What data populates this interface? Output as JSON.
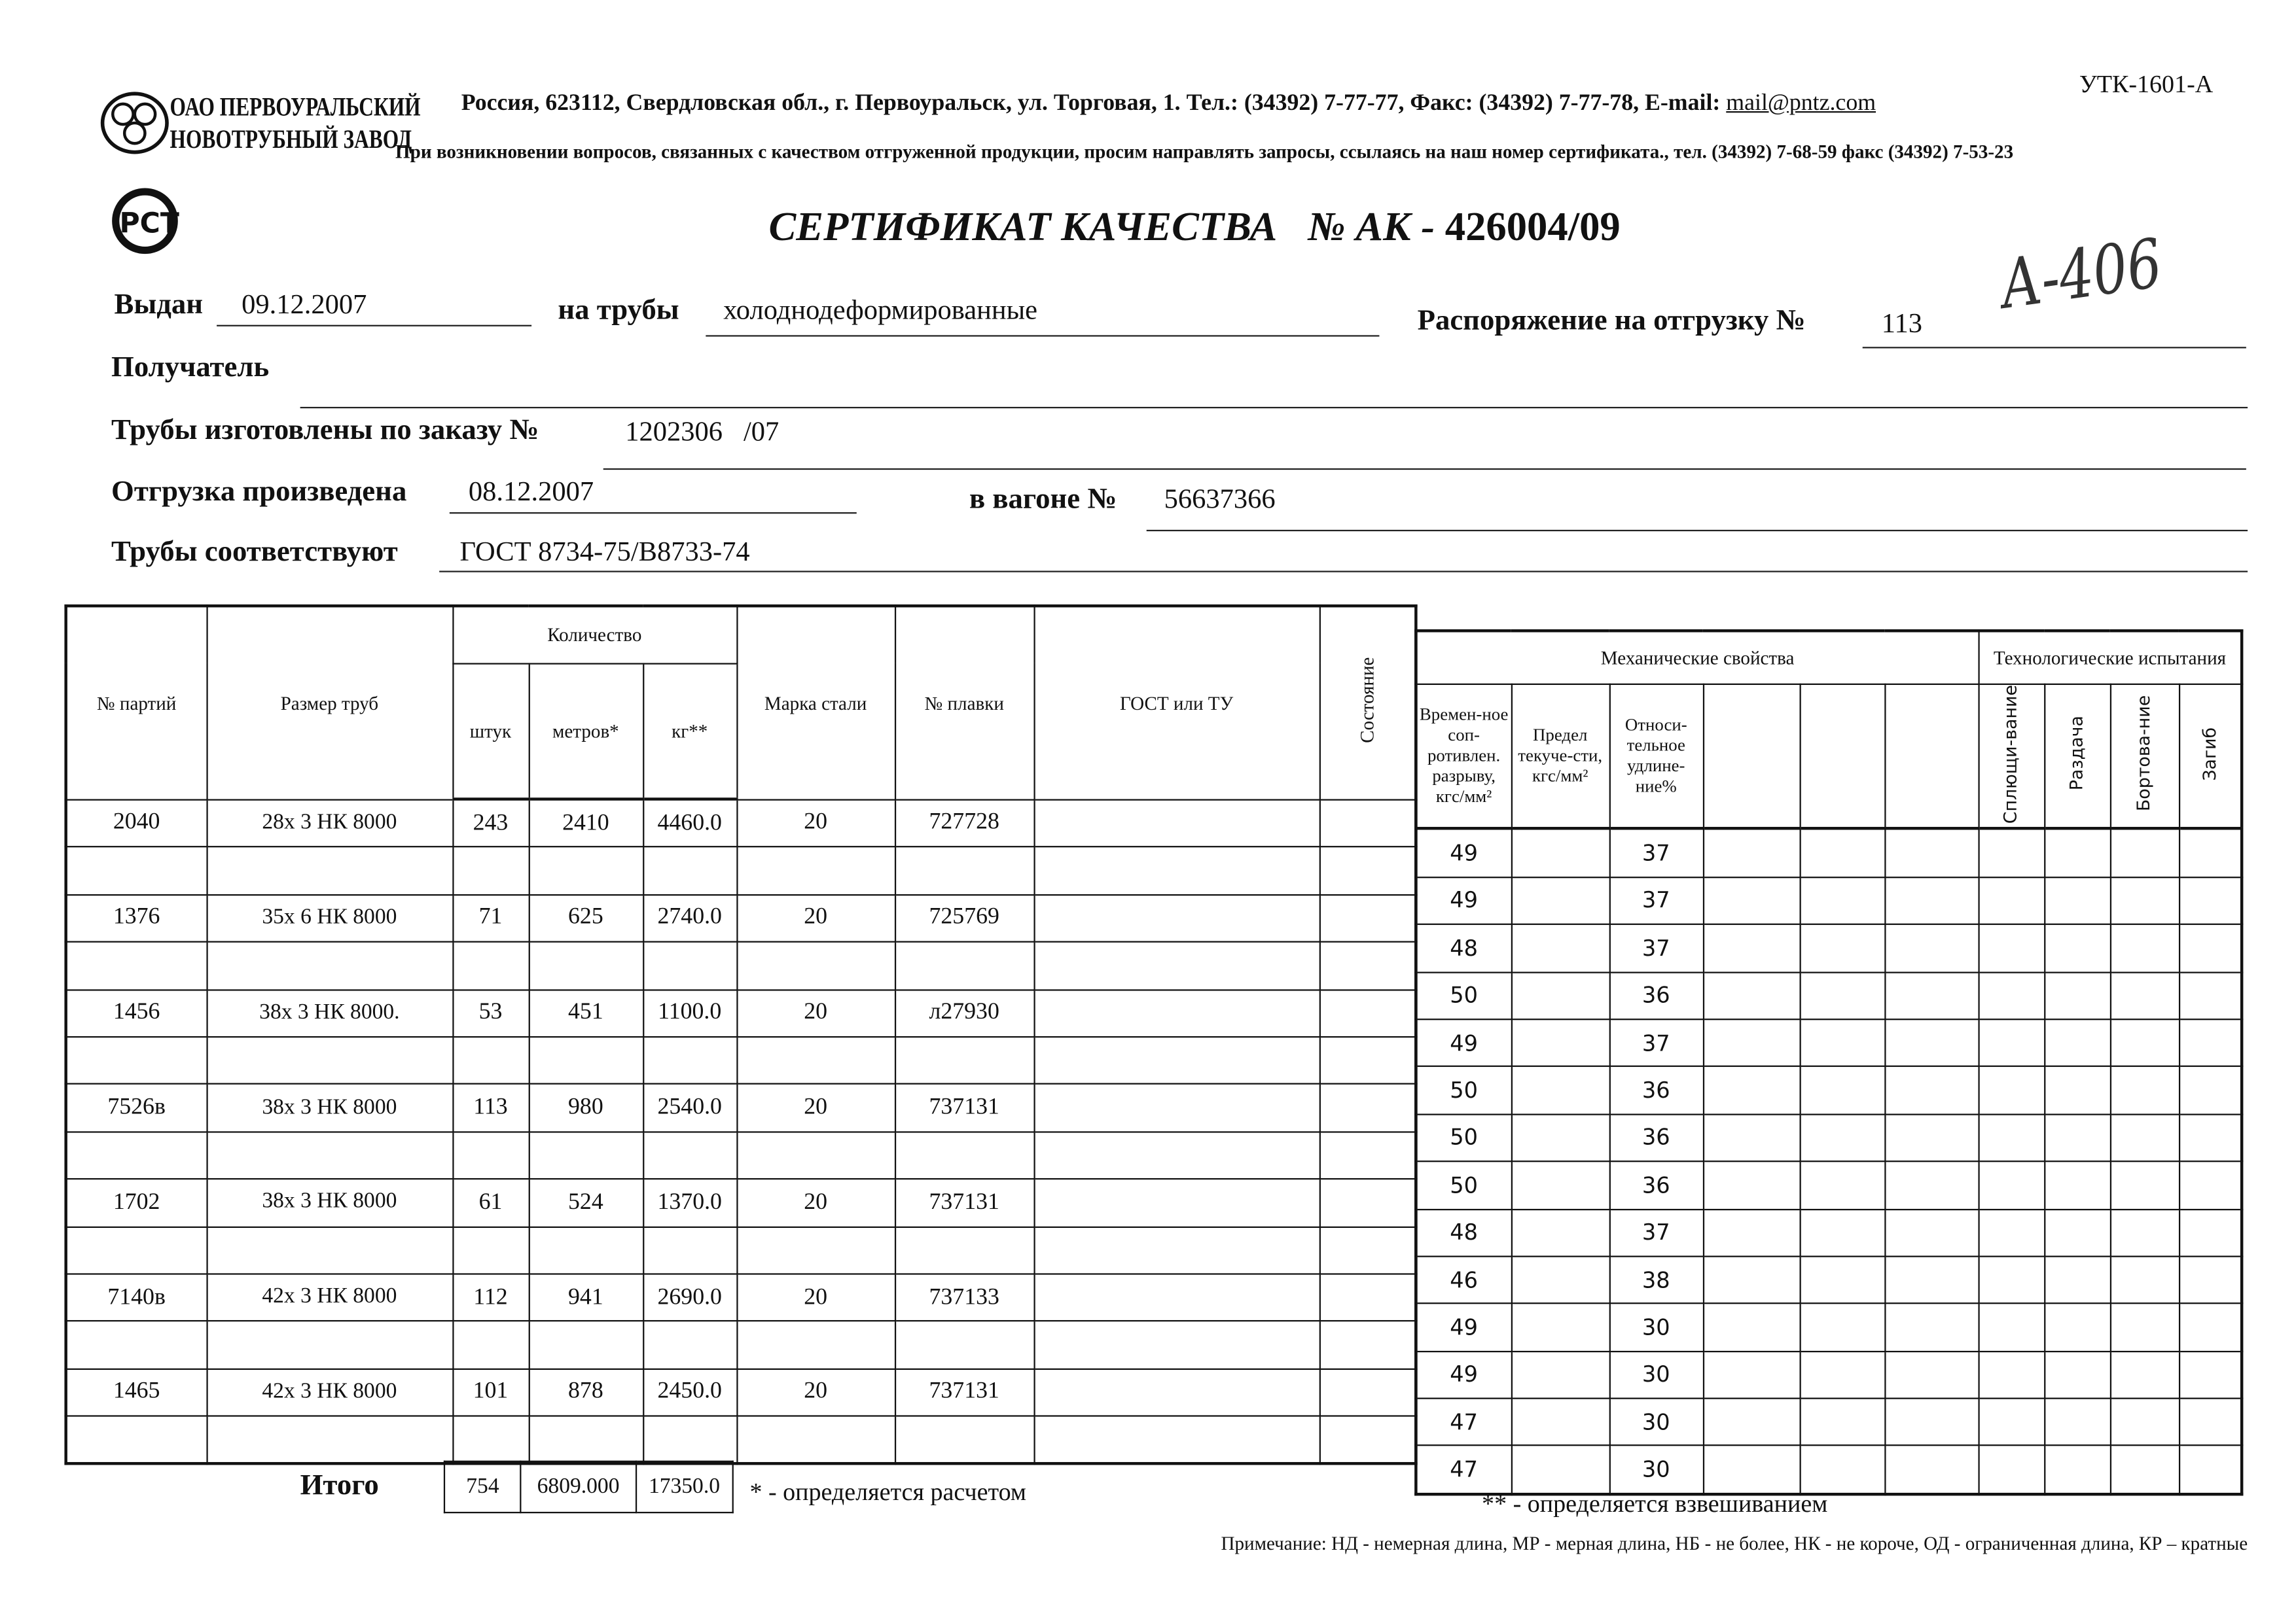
{
  "form_code": "УТК-1601-А",
  "company": {
    "line1": "ОАО ПЕРВОУРАЛЬСКИЙ",
    "line2": "НОВОТРУБНЫЙ ЗАВОД"
  },
  "address": "Россия, 623112, Свердловская обл., г. Первоуральск, ул. Торговая, 1. Тел.: (34392) 7-77-77, Факс: (34392) 7-77-78,  E-mail: ",
  "email": "mail@pntz.com",
  "contact_note": "При возникновении вопросов, связанных с качеством отгруженной продукции, просим направлять запросы, ссылаясь на наш номер сертификата., тел. (34392) 7-68-59 факс (34392) 7-53-23",
  "cert_mark": "РСТ",
  "title": "СЕРТИФИКАТ КАЧЕСТВА",
  "number_label": "№  АК -",
  "number": "426004/09",
  "handwritten": "А-406",
  "fields": {
    "issued_label": "Выдан",
    "issued": "09.12.2007",
    "pipes_label": "на трубы",
    "pipes": "холоднодеформированные",
    "order_label": "Распоряжение на отгрузку №",
    "order": "113",
    "recipient_label": "Получатель",
    "recipient": "",
    "made_label": "Трубы изготовлены по заказу №",
    "made": "1202306   /07",
    "shipped_label": "Отгрузка произведена",
    "shipped": "08.12.2007",
    "wagon_label": "в вагоне №",
    "wagon": "56637366",
    "conform_label": "Трубы соответствуют",
    "conform": "ГОСТ 8734-75/В8733-74"
  },
  "table": {
    "headers": {
      "party": "№ партий",
      "size": "Размер труб",
      "quantity": "Количество",
      "pcs": "штук",
      "meters": "метров*",
      "kg": "кг**",
      "steel": "Марка стали",
      "heat": "№ плавки",
      "gost": "ГОСТ или ТУ",
      "state": "Состояние",
      "mech": "Механические свойства",
      "tensile": "Времен-ное соп-ротивлен. разрыву, кгс/мм²",
      "yield": "Предел текуче-сти, кгс/мм²",
      "elong": "Относи-тельное удлине-ние%",
      "tech": "Технологические испытания",
      "flatten": "Сплющи-вание",
      "expand": "Раздача",
      "flange": "Бортова-ние",
      "bend": "Загиб"
    },
    "rows": [
      {
        "party": "2040",
        "size": "28х 3 НК 8000",
        "pcs": "243",
        "meters": "2410",
        "kg": "4460.0",
        "steel": "20",
        "heat": "727728"
      },
      {
        "party": "1376",
        "size": "35х 6 НК 8000",
        "pcs": "71",
        "meters": "625",
        "kg": "2740.0",
        "steel": "20",
        "heat": "725769"
      },
      {
        "party": "1456",
        "size": "38х 3 НК 8000.",
        "pcs": "53",
        "meters": "451",
        "kg": "1100.0",
        "steel": "20",
        "heat": "л27930"
      },
      {
        "party": "7526в",
        "size": "38х 3 НК 8000",
        "pcs": "113",
        "meters": "980",
        "kg": "2540.0",
        "steel": "20",
        "heat": "737131"
      },
      {
        "party": "1702",
        "size": "38х 3 НК 8000",
        "pcs": "61",
        "meters": "524",
        "kg": "1370.0",
        "steel": "20",
        "heat": "737131"
      },
      {
        "party": "7140в",
        "size": "42х 3 НК 8000",
        "pcs": "112",
        "meters": "941",
        "kg": "2690.0",
        "steel": "20",
        "heat": "737133"
      },
      {
        "party": "1465",
        "size": "42х 3 НК 8000",
        "pcs": "101",
        "meters": "878",
        "kg": "2450.0",
        "steel": "20",
        "heat": "737131"
      }
    ],
    "mech_rows": [
      {
        "tensile": "49",
        "elong": "37"
      },
      {
        "tensile": "49",
        "elong": "37"
      },
      {
        "tensile": "48",
        "elong": "37"
      },
      {
        "tensile": "50",
        "elong": "36"
      },
      {
        "tensile": "49",
        "elong": "37"
      },
      {
        "tensile": "50",
        "elong": "36"
      },
      {
        "tensile": "50",
        "elong": "36"
      },
      {
        "tensile": "50",
        "elong": "36"
      },
      {
        "tensile": "48",
        "elong": "37"
      },
      {
        "tensile": "46",
        "elong": "38"
      },
      {
        "tensile": "49",
        "elong": "30"
      },
      {
        "tensile": "49",
        "elong": "30"
      },
      {
        "tensile": "47",
        "elong": "30"
      },
      {
        "tensile": "47",
        "elong": "30"
      }
    ],
    "total_label": "Итого",
    "total": {
      "pcs": "754",
      "meters": "6809.000",
      "kg": "17350.0"
    }
  },
  "footnote1": "* - определяется расчетом",
  "footnote2": "** - определяется взвешиванием",
  "note": "Примечание: НД - немерная длина, МР - мерная длина, НБ - не более, НК - не короче, ОД - ограниченная длина, КР – кратные"
}
